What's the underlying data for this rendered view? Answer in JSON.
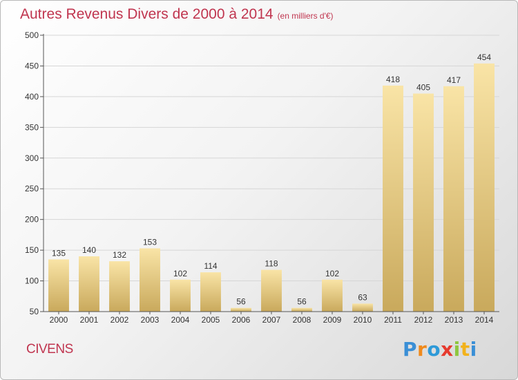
{
  "header": {
    "title": "Autres Revenus Divers de 2000 à 2014",
    "unit": "(en milliers d'€)"
  },
  "town": "CIVENS",
  "logo": {
    "letters": [
      "P",
      "r",
      "o",
      "x",
      "i",
      "t",
      "i"
    ]
  },
  "colors": {
    "title": "#c0354f",
    "bar_top": "#f9e4a6",
    "bar_bottom": "#c9a95c",
    "axis": "#555555",
    "grid": "#d6d6d6"
  },
  "chart_data": {
    "type": "bar",
    "title": "Autres Revenus Divers de 2000 à 2014",
    "subtitle": "(en milliers d'€)",
    "categories": [
      "2000",
      "2001",
      "2002",
      "2003",
      "2004",
      "2005",
      "2006",
      "2007",
      "2008",
      "2009",
      "2010",
      "2011",
      "2012",
      "2013",
      "2014"
    ],
    "values": [
      135,
      140,
      132,
      153,
      102,
      114,
      56,
      118,
      56,
      102,
      63,
      418,
      405,
      417,
      454
    ],
    "data_labels": [
      "135",
      "140",
      "132",
      "153",
      "102",
      "114",
      "56",
      "118",
      "56",
      "102",
      "63",
      "418",
      "405",
      "417",
      "454"
    ],
    "xlabel": "",
    "ylabel": "",
    "ylim": [
      50,
      500
    ],
    "yticks": [
      50,
      100,
      150,
      200,
      250,
      300,
      350,
      400,
      450,
      500
    ],
    "ytick_labels": [
      "50",
      "100",
      "150",
      "200",
      "250",
      "300",
      "350",
      "400",
      "450",
      "500"
    ],
    "grid": true,
    "legend": "none"
  }
}
